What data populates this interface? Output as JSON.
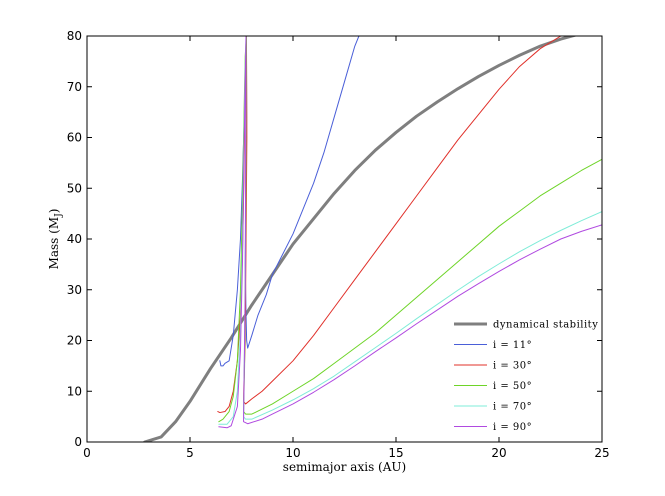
{
  "chart_data": {
    "type": "line",
    "xlabel": "semimajor axis (AU)",
    "ylabel_main": "Mass (M",
    "ylabel_sub": "J",
    "ylabel_close": ")",
    "xlim": [
      0,
      25
    ],
    "ylim": [
      0,
      80
    ],
    "xticks": [
      0,
      5,
      10,
      15,
      20,
      25
    ],
    "yticks": [
      0,
      10,
      20,
      30,
      40,
      50,
      60,
      70,
      80
    ],
    "grid": false,
    "legend_position": "lower-right",
    "series": [
      {
        "name": "dynamical stability",
        "color": "#7f7f7f",
        "width": 3,
        "x": [
          2.8,
          3.6,
          4.3,
          5.0,
          6.0,
          7.0,
          8.0,
          9.0,
          10.0,
          11.0,
          12.0,
          13.0,
          14.0,
          15.0,
          16.0,
          17.0,
          18.0,
          19.0,
          20.0,
          21.0,
          22.0,
          23.0,
          24.0
        ],
        "y": [
          0,
          1,
          4,
          8,
          14.5,
          20.5,
          27,
          33,
          39,
          44,
          49,
          53.5,
          57.5,
          61,
          64.2,
          67,
          69.6,
          72,
          74.2,
          76.2,
          78,
          79.4,
          80.5
        ]
      },
      {
        "name": "i = 11°",
        "color": "#4a5fd8",
        "width": 1,
        "x": [
          6.45,
          6.5,
          6.6,
          6.7,
          6.9,
          7.1,
          7.3,
          7.45,
          7.55,
          7.62,
          7.68,
          7.72,
          7.74,
          7.75,
          7.72,
          7.68,
          7.72,
          7.75,
          7.8,
          8.0,
          8.3,
          8.7,
          9.0,
          9.5,
          10.0,
          10.5,
          11.0,
          11.5,
          12.0,
          12.5,
          13.0,
          13.2
        ],
        "y": [
          16,
          15,
          15,
          15.5,
          16,
          21,
          30,
          40,
          52,
          62,
          70,
          76,
          80,
          64,
          50,
          35,
          25,
          20,
          18.5,
          21,
          25,
          29,
          33,
          37,
          41,
          46,
          51,
          57,
          64,
          71,
          78,
          80
        ],
        "legend": "i = 11°"
      },
      {
        "name": "i = 30°",
        "color": "#e0302a",
        "width": 1,
        "x": [
          6.35,
          6.45,
          6.7,
          6.9,
          7.1,
          7.3,
          7.45,
          7.55,
          7.62,
          7.66,
          7.7,
          7.74,
          7.76,
          7.72,
          7.68,
          7.62,
          7.6,
          7.7,
          8.0,
          8.5,
          9.0,
          10.0,
          11.0,
          12.0,
          13.0,
          14.0,
          15.0,
          16.0,
          17.0,
          18.0,
          19.0,
          20.0,
          21.0,
          22.0,
          23.0,
          23.8
        ],
        "y": [
          6,
          5.8,
          6,
          7,
          10,
          16,
          25,
          38,
          52,
          66,
          76,
          80,
          60,
          40,
          20,
          12,
          8,
          7.5,
          8.5,
          10,
          12,
          16,
          21,
          26.5,
          32,
          37.5,
          43,
          48.5,
          54,
          59.5,
          64.5,
          69.5,
          74,
          77.5,
          80,
          80
        ]
      },
      {
        "name": "i = 50°",
        "color": "#6ed428",
        "width": 1,
        "x": [
          6.4,
          6.6,
          6.9,
          7.1,
          7.3,
          7.45,
          7.55,
          7.62,
          7.68,
          7.74,
          7.7,
          7.65,
          7.6,
          7.7,
          8.0,
          9.0,
          10.0,
          11.0,
          12.0,
          13.0,
          14.0,
          15.0,
          16.0,
          17.0,
          18.0,
          19.0,
          20.0,
          21.0,
          22.0,
          23.0,
          24.0,
          25.0
        ],
        "y": [
          4,
          4.5,
          6,
          9,
          16,
          30,
          48,
          64,
          76,
          80,
          40,
          15,
          6,
          5.5,
          5.5,
          7.5,
          10,
          12.5,
          15.5,
          18.5,
          21.5,
          25,
          28.5,
          32,
          35.5,
          39,
          42.5,
          45.5,
          48.5,
          51,
          53.5,
          55.7
        ]
      },
      {
        "name": "i = 70°",
        "color": "#7fecd8",
        "width": 1,
        "x": [
          6.4,
          6.8,
          7.1,
          7.3,
          7.45,
          7.55,
          7.62,
          7.68,
          7.72,
          7.68,
          7.6,
          7.7,
          8.0,
          9.0,
          10.0,
          11.0,
          12.0,
          13.0,
          14.0,
          15.0,
          16.0,
          17.0,
          18.0,
          19.0,
          20.0,
          21.0,
          22.0,
          23.0,
          24.0,
          25.0
        ],
        "y": [
          3.5,
          3.5,
          5,
          10,
          22,
          40,
          60,
          74,
          80,
          30,
          5,
          4.5,
          4.5,
          6.3,
          8.3,
          10.5,
          13,
          15.8,
          18.6,
          21.4,
          24.3,
          27.1,
          29.9,
          32.6,
          35.1,
          37.5,
          39.7,
          41.7,
          43.6,
          45.4
        ]
      },
      {
        "name": "i = 90°",
        "color": "#b04ae0",
        "width": 1,
        "x": [
          6.4,
          6.8,
          7.0,
          7.3,
          7.45,
          7.55,
          7.62,
          7.68,
          7.72,
          7.68,
          7.6,
          7.8,
          8.5,
          9.0,
          10.0,
          11.0,
          12.0,
          13.0,
          14.0,
          15.0,
          16.0,
          17.0,
          18.0,
          19.0,
          20.0,
          21.0,
          22.0,
          23.0,
          24.0,
          25.0
        ],
        "y": [
          3,
          2.8,
          3.2,
          7,
          18,
          36,
          56,
          72,
          80,
          30,
          4,
          3.6,
          4.5,
          5.5,
          7.5,
          9.8,
          12.3,
          15,
          17.8,
          20.5,
          23.3,
          26,
          28.7,
          31.2,
          33.6,
          35.9,
          38,
          40,
          41.5,
          42.8
        ]
      }
    ]
  }
}
